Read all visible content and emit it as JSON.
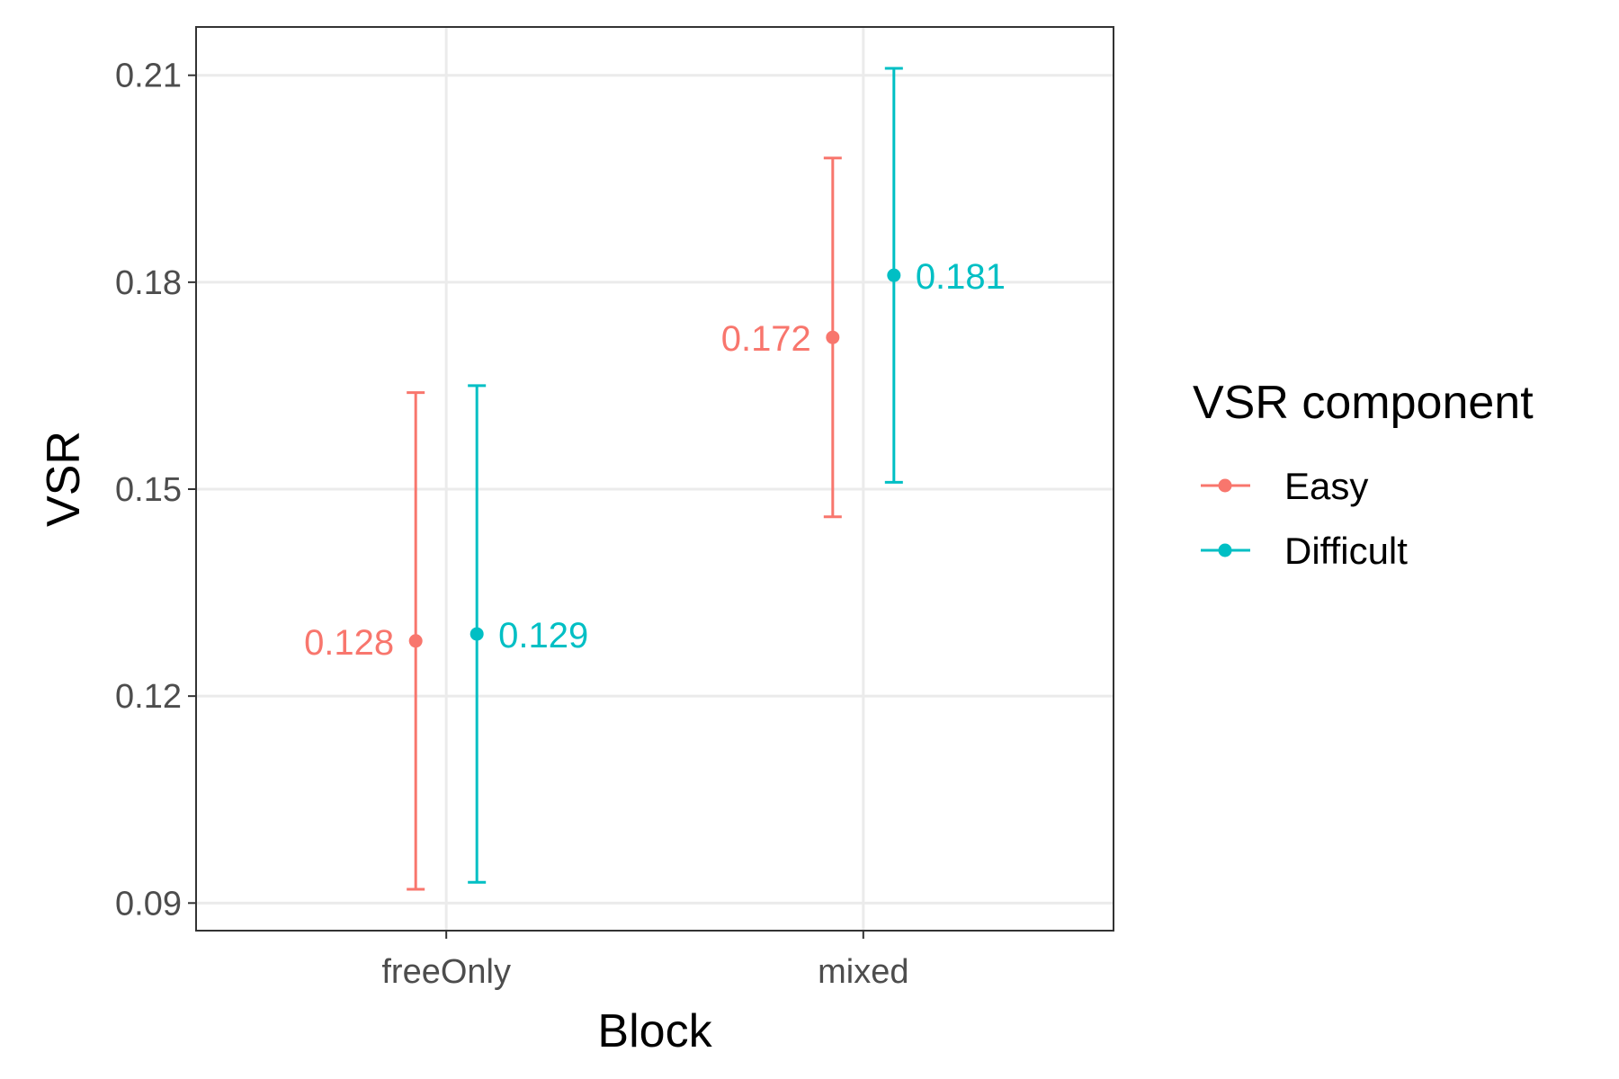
{
  "chart_data": {
    "type": "scatter",
    "subtype": "point-errorbar",
    "title": "",
    "xlabel": "Block",
    "ylabel": "VSR",
    "categories": [
      "freeOnly",
      "mixed"
    ],
    "ylim": [
      0.086,
      0.217
    ],
    "yticks": [
      0.09,
      0.12,
      0.15,
      0.18,
      0.21
    ],
    "ytick_labels": [
      "0.09",
      "0.12",
      "0.15",
      "0.18",
      "0.21"
    ],
    "grid": true,
    "legend": {
      "title": "VSR component",
      "position": "right",
      "entries": [
        "Easy",
        "Difficult"
      ]
    },
    "series": [
      {
        "name": "Easy",
        "color": "#F8766D",
        "values": [
          0.128,
          0.172
        ],
        "lower": [
          0.092,
          0.146
        ],
        "upper": [
          0.164,
          0.198
        ],
        "labels": [
          "0.128",
          "0.172"
        ],
        "label_side": "left"
      },
      {
        "name": "Difficult",
        "color": "#00BFC4",
        "values": [
          0.129,
          0.181
        ],
        "lower": [
          0.093,
          0.151
        ],
        "upper": [
          0.165,
          0.211
        ],
        "labels": [
          "0.129",
          "0.181"
        ],
        "label_side": "right"
      }
    ]
  }
}
